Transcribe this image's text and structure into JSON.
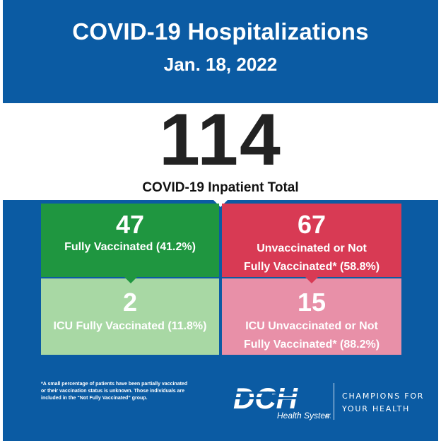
{
  "header": {
    "title": "COVID-19 Hospitalizations",
    "date": "Jan. 18, 2022"
  },
  "total": {
    "value": "114",
    "label": "COVID-19 Inpatient Total"
  },
  "tiles": {
    "fully_vaccinated": {
      "value": "47",
      "label": "Fully Vaccinated (41.2%)",
      "color": "#1f9640"
    },
    "unvaccinated": {
      "value": "67",
      "label_line1": "Unvaccinated or Not",
      "label_line2": "Fully Vaccinated* (58.8%)",
      "color": "#d83a54"
    },
    "icu_fully_vaccinated": {
      "value": "2",
      "label": "ICU Fully Vaccinated (11.8%)",
      "color": "#a8d8a4"
    },
    "icu_unvaccinated": {
      "value": "15",
      "label_line1": "ICU Unvaccinated or Not",
      "label_line2": "Fully Vaccinated* (88.2%)",
      "color": "#e890a8"
    }
  },
  "footnote": {
    "line1": "*A small percentage of patients have been partially vaccinated",
    "line2": "or their vaccination status is unknown. Those individuals are",
    "line3": "included in the “Not Fully Vaccinated” group."
  },
  "branding": {
    "logo_text": "DCH",
    "logo_subtext": "Health System",
    "tagline_line1": "CHAMPIONS FOR",
    "tagline_line2": "YOUR HEALTH"
  },
  "colors": {
    "background": "#0b5ba3",
    "band": "#ffffff"
  }
}
